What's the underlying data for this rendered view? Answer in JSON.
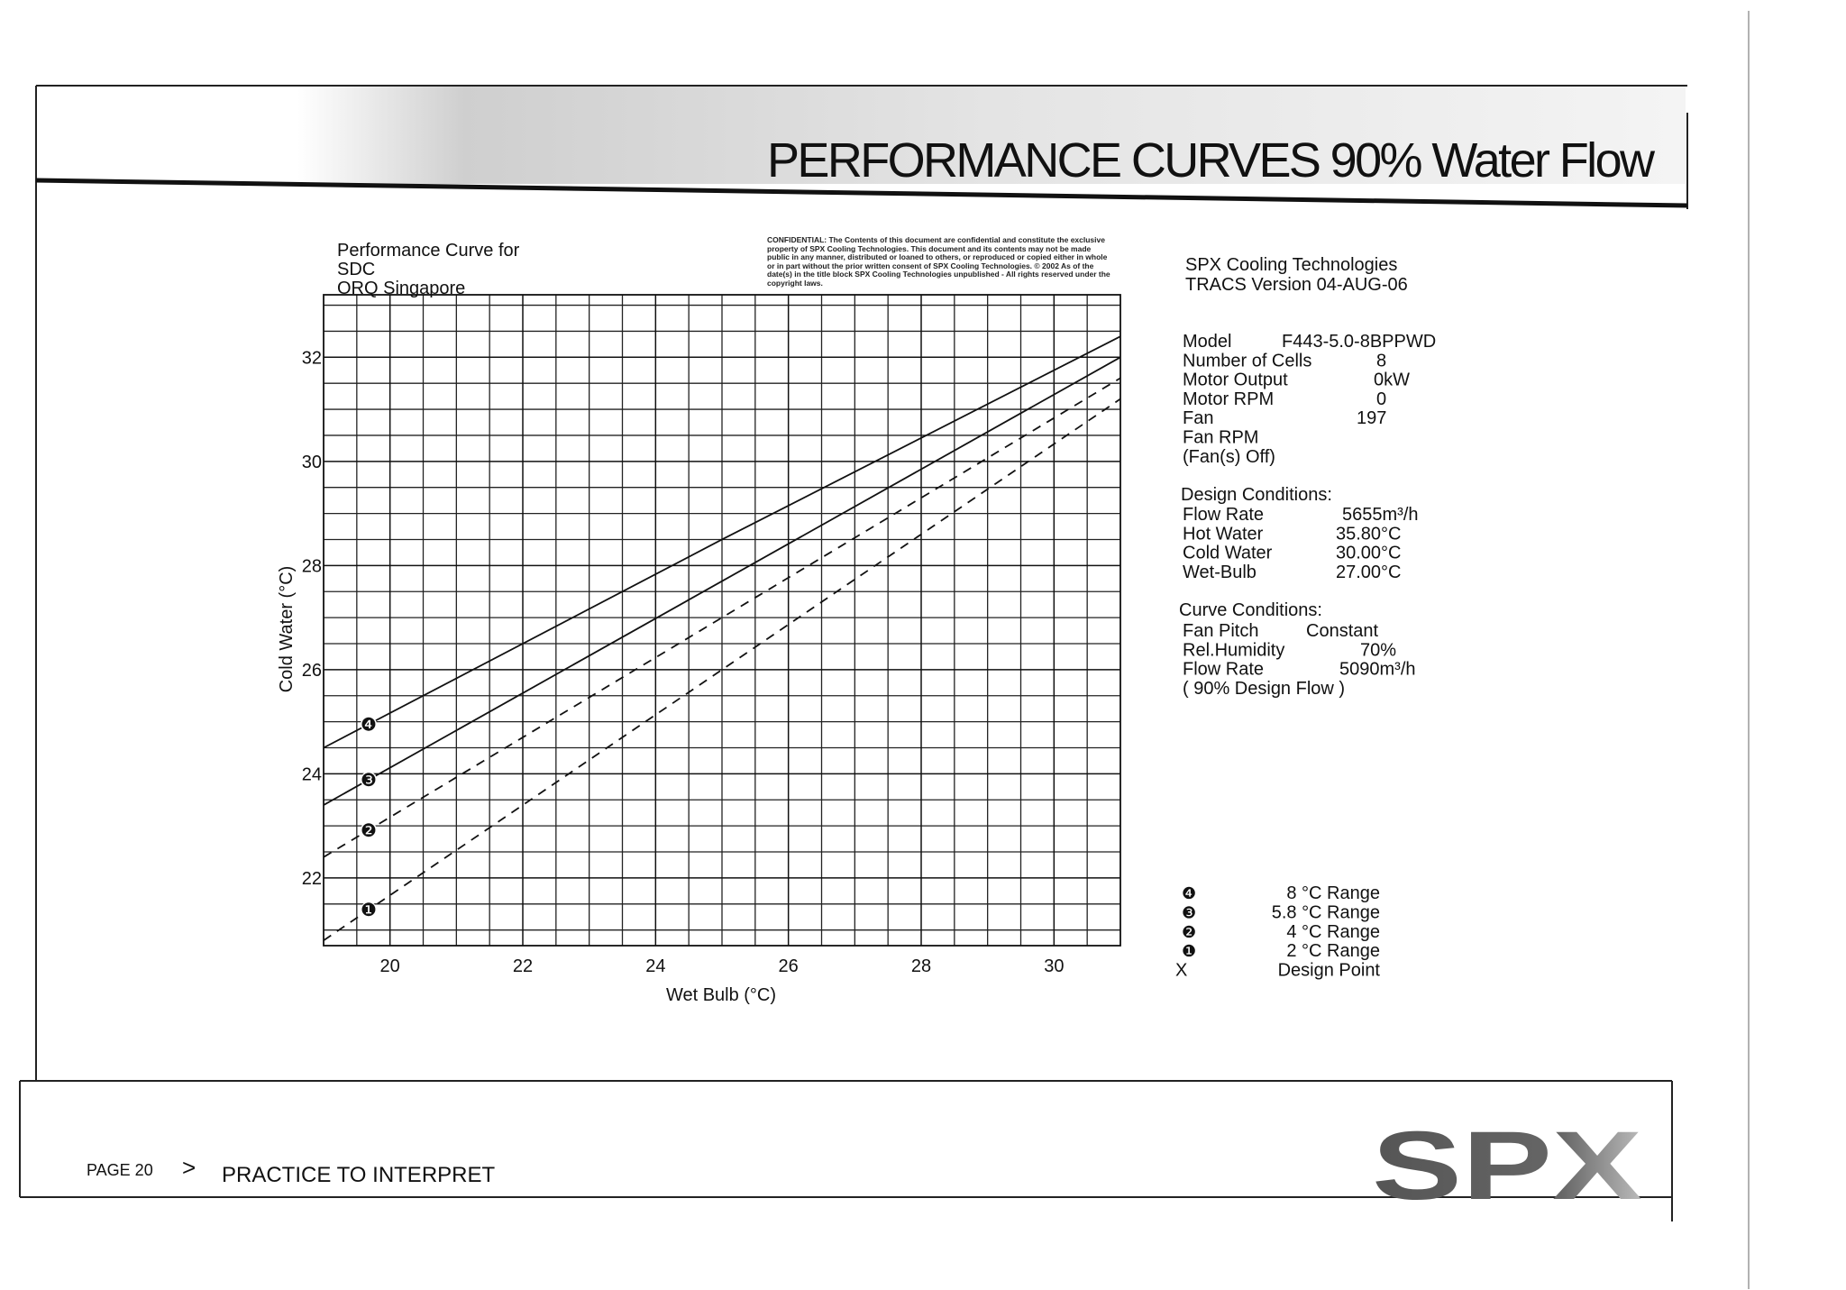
{
  "header": {
    "title": "PERFORMANCE CURVES 90% Water Flow"
  },
  "chart_header": [
    "Performance Curve for",
    "SDC",
    "ORQ Singapore"
  ],
  "confidential": "CONFIDENTIAL: The Contents of this document are confidential and constitute the exclusive property of SPX Cooling Technologies. This document and its contents may not be made public in any manner, distributed or loaned to others, or reproduced or copied either in whole or in part without the prior written consent of SPX Cooling Technologies. © 2002 As of the date(s) in the title block SPX Cooling Technologies unpublished - All rights reserved under the copyright laws.",
  "info": {
    "company": "SPX Cooling Technologies",
    "version": "TRACS Version 04-AUG-06",
    "unit": [
      [
        "Model",
        "F443-5.0-8BPPWD"
      ],
      [
        "Number of Cells",
        "8"
      ],
      [
        "Motor Output",
        "0kW"
      ],
      [
        "Motor RPM",
        "0"
      ],
      [
        "Fan",
        "197"
      ],
      [
        "Fan RPM"
      ],
      [
        "(Fan(s) Off)"
      ]
    ],
    "design_conditions": {
      "title": "Design Conditions:",
      "rows": [
        [
          "Flow Rate",
          "5655m³/h"
        ],
        [
          "Hot Water",
          "35.80°C"
        ],
        [
          "Cold Water",
          "30.00°C"
        ],
        [
          "Wet-Bulb",
          "27.00°C"
        ]
      ]
    },
    "curve_conditions": {
      "title": "Curve Conditions:",
      "rows": [
        [
          "Fan Pitch",
          "Constant"
        ],
        [
          "Rel.Humidity",
          "70%"
        ],
        [
          "Flow Rate",
          "5090m³/h"
        ],
        [
          "( 90% Design Flow )"
        ]
      ]
    }
  },
  "chart_data": {
    "type": "line",
    "x_label": "Wet Bulb (°C)",
    "y_label": "Cold Water (°C)",
    "x": [
      19,
      25,
      31
    ],
    "series": [
      {
        "name": "8 °C Range",
        "symbol": "❹",
        "color": "#111111",
        "dashed": false,
        "values": [
          24.5,
          28.5,
          32.4
        ]
      },
      {
        "name": "5.8 °C Range",
        "symbol": "❸",
        "color": "#111111",
        "dashed": false,
        "values": [
          23.4,
          27.7,
          32.0
        ]
      },
      {
        "name": "4 °C Range",
        "symbol": "❷",
        "color": "#111111",
        "dashed": true,
        "values": [
          22.4,
          27.0,
          31.6
        ]
      },
      {
        "name": "2 °C Range",
        "symbol": "❶",
        "color": "#111111",
        "dashed": true,
        "values": [
          20.8,
          26.0,
          31.2
        ]
      }
    ],
    "design_point": {
      "symbol": "X",
      "label": "Design Point"
    },
    "xlim": [
      19,
      31
    ],
    "ylim": [
      20.7,
      33.2
    ],
    "xticks": [
      20,
      22,
      24,
      26,
      28,
      30
    ],
    "yticks": [
      22,
      24,
      26,
      28,
      30,
      32
    ],
    "grid": true
  },
  "footer": {
    "page": "PAGE 20",
    "separator": ">",
    "section": "PRACTICE TO INTERPRET",
    "logo": "SPX"
  }
}
